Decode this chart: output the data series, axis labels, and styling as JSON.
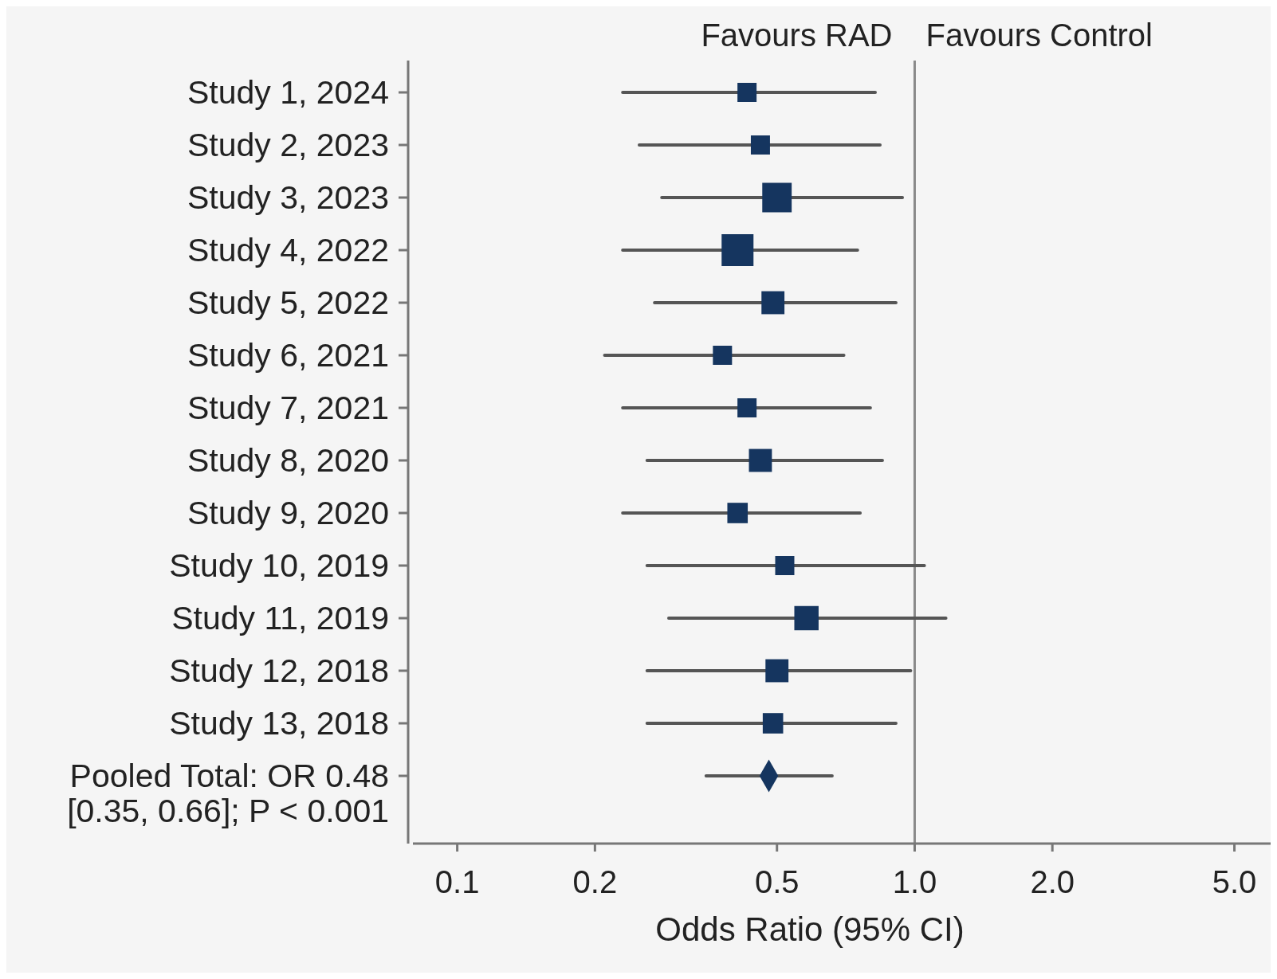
{
  "chart_data": {
    "type": "bubble",
    "orientation": "horizontal",
    "log": "x",
    "xlabel": "Odds Ratio (95% CI)",
    "categories": [
      "Study 1, 2024",
      "Study 2, 2023",
      "Study 3, 2023",
      "Study 4, 2022",
      "Study 5, 2022",
      "Study 6, 2021",
      "Study 7, 2021",
      "Study 8, 2020",
      "Study 9, 2020",
      "Study 10, 2019",
      "Study 11, 2019",
      "Study 12, 2018",
      "Study 13, 2018",
      "Pooled Total: OR 0.48 [0.35, 0.66]; P < 0.001"
    ],
    "xlim": [
      0.08,
      6
    ],
    "xticks": [
      0.1,
      0.2,
      0.5,
      {
        "value": 1,
        "label": "1.0"
      },
      {
        "value": 2,
        "label": "2.0"
      },
      {
        "value": 5,
        "label": "5.0"
      }
    ],
    "ref_lines": [
      {
        "axis": "x",
        "value": 1,
        "color": "#8a8a8a"
      }
    ],
    "annotations": [
      "Favours RAD",
      "Favours Control"
    ],
    "grid": false,
    "series": [
      {
        "marker": "square",
        "color": "#15355f",
        "values": [
          0.43,
          0.46,
          0.5,
          0.41,
          0.49,
          0.38,
          0.43,
          0.46,
          0.41,
          0.52,
          0.58,
          0.5,
          0.49,
          null
        ],
        "errors": [
          [
            0.23,
            0.82
          ],
          [
            0.25,
            0.84
          ],
          [
            0.28,
            0.94
          ],
          [
            0.23,
            0.75
          ],
          [
            0.27,
            0.91
          ],
          [
            0.21,
            0.7
          ],
          [
            0.23,
            0.8
          ],
          [
            0.26,
            0.85
          ],
          [
            0.23,
            0.76
          ],
          [
            0.26,
            1.05
          ],
          [
            0.29,
            1.17
          ],
          [
            0.26,
            0.98
          ],
          [
            0.26,
            0.91
          ],
          null
        ],
        "sizes": [
          0.36,
          0.36,
          0.85,
          1,
          0.52,
          0.36,
          0.36,
          0.52,
          0.41,
          0.36,
          0.58,
          0.52,
          0.41,
          null
        ]
      },
      {
        "type": "scatter",
        "marker": "diamond",
        "color": "#15355f",
        "values": [
          null,
          null,
          null,
          null,
          null,
          null,
          null,
          null,
          null,
          null,
          null,
          null,
          null,
          0.48
        ],
        "errors": [
          null,
          null,
          null,
          null,
          null,
          null,
          null,
          null,
          null,
          null,
          null,
          null,
          null,
          [
            0.35,
            0.66
          ]
        ]
      }
    ]
  }
}
